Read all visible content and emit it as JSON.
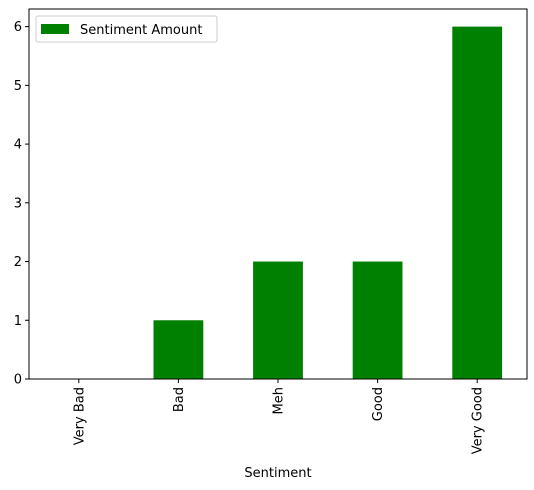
{
  "chart_data": {
    "type": "bar",
    "title": "",
    "xlabel": "Sentiment",
    "ylabel": "",
    "categories": [
      "Very Bad",
      "Bad",
      "Meh",
      "Good",
      "Very Good"
    ],
    "series": [
      {
        "name": "Sentiment Amount",
        "values": [
          0,
          1,
          2,
          2,
          6
        ],
        "color": "#008000"
      }
    ],
    "ylim": [
      0,
      6.3
    ],
    "yticks": [
      "0",
      "1",
      "2",
      "3",
      "4",
      "5",
      "6"
    ],
    "grid": false,
    "legend_position": "top-left"
  }
}
